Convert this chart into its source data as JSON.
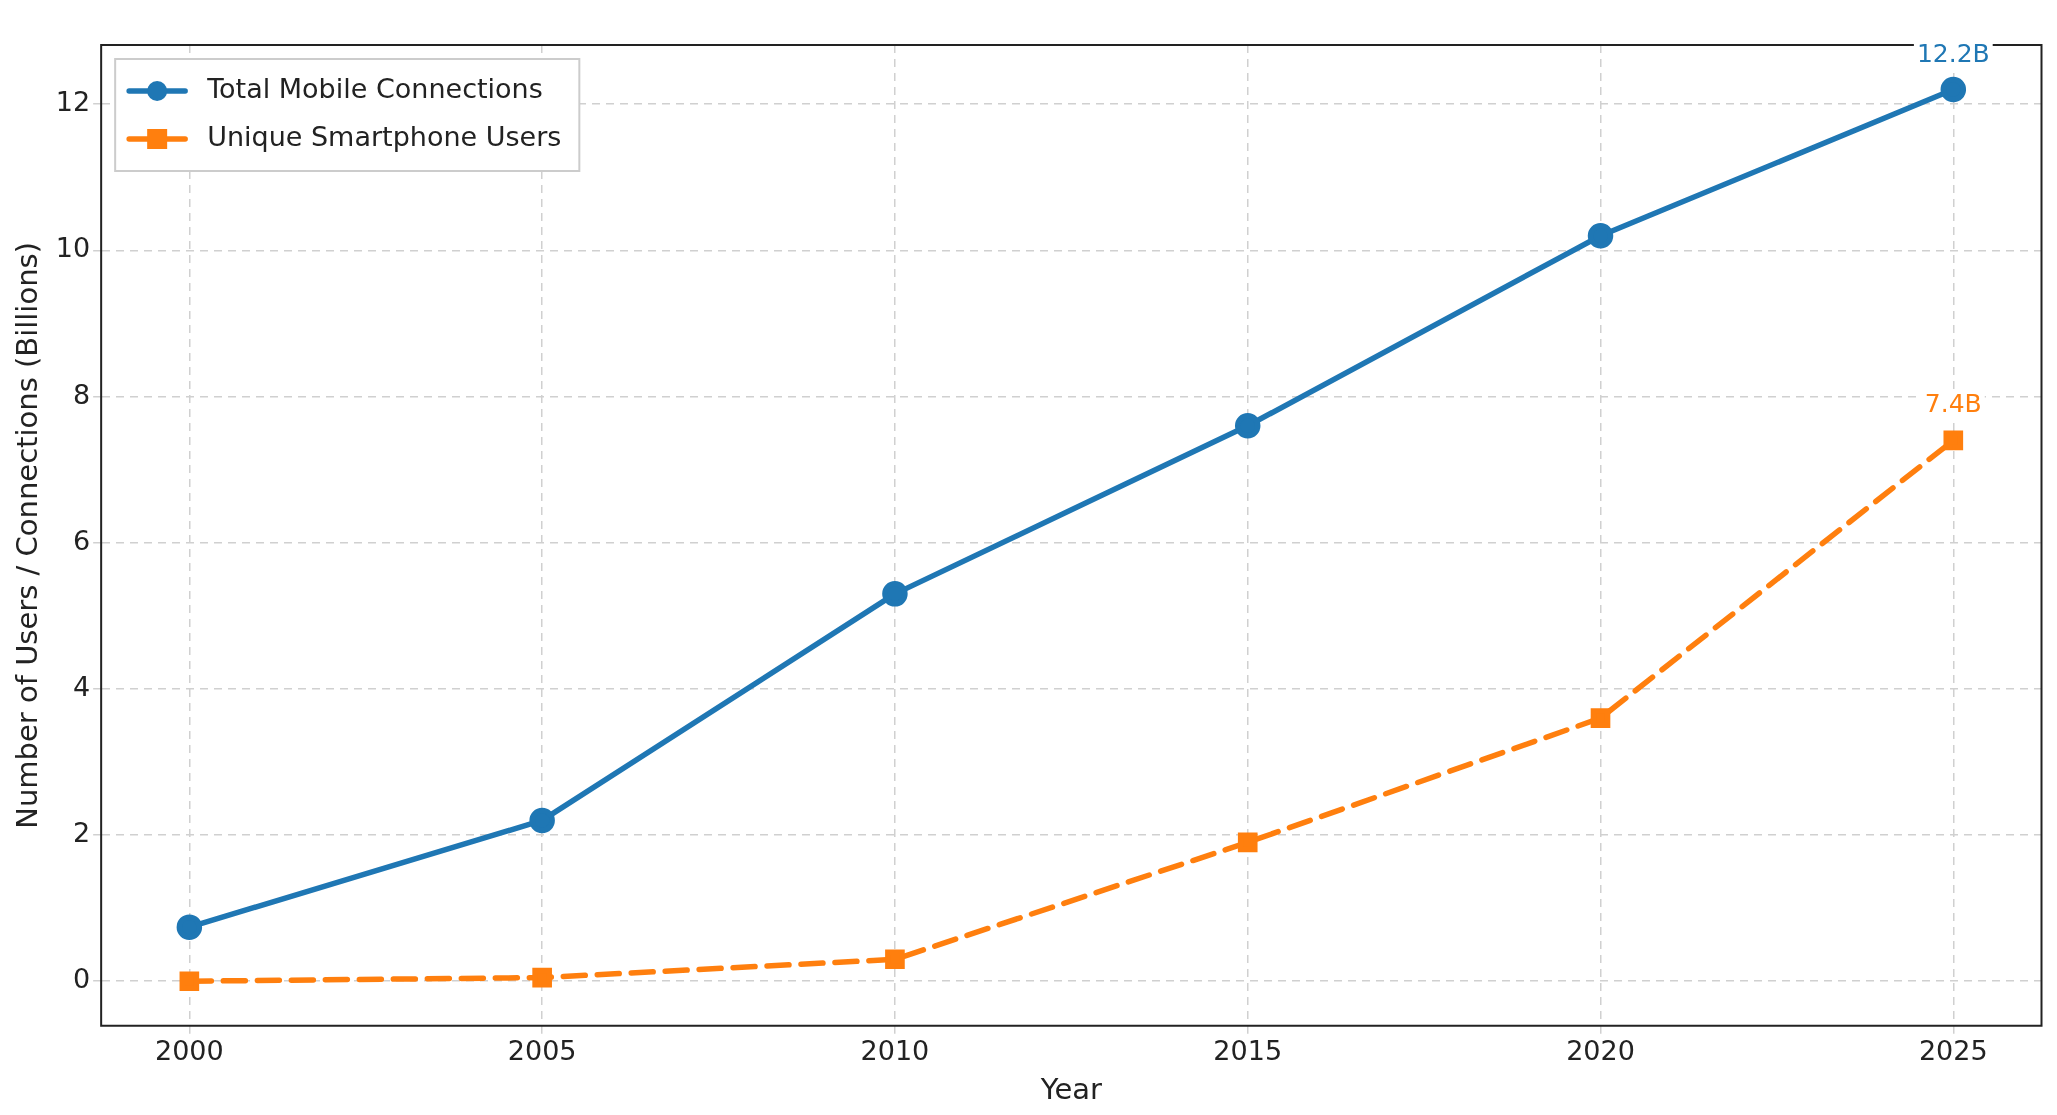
{
  "chart_data": {
    "type": "line",
    "xlabel": "Year",
    "ylabel": "Number of Users / Connections (Billions)",
    "x": [
      2000,
      2005,
      2010,
      2015,
      2020,
      2025
    ],
    "series": [
      {
        "name": "Total Mobile Connections",
        "color": "#1f77b4",
        "marker": "circle",
        "line_style": "solid",
        "values": [
          0.74,
          2.2,
          5.3,
          7.6,
          10.2,
          12.2
        ]
      },
      {
        "name": "Unique Smartphone Users",
        "color": "#ff7f0e",
        "marker": "square",
        "line_style": "dashed",
        "values": [
          0.0,
          0.05,
          0.3,
          1.9,
          3.6,
          7.4
        ]
      }
    ],
    "xlim": [
      1998.75,
      2026.25
    ],
    "xticks": [
      2000,
      2005,
      2010,
      2015,
      2020,
      2025
    ],
    "ylim": [
      -0.61,
      12.81
    ],
    "yticks": [
      0,
      2,
      4,
      6,
      8,
      10,
      12
    ],
    "grid": true,
    "legend": "top left",
    "annotations": [
      {
        "text": "12.2B",
        "x": 2025,
        "y": 12.2
      },
      {
        "text": "7.4B",
        "x": 2025,
        "y": 7.4
      }
    ]
  }
}
